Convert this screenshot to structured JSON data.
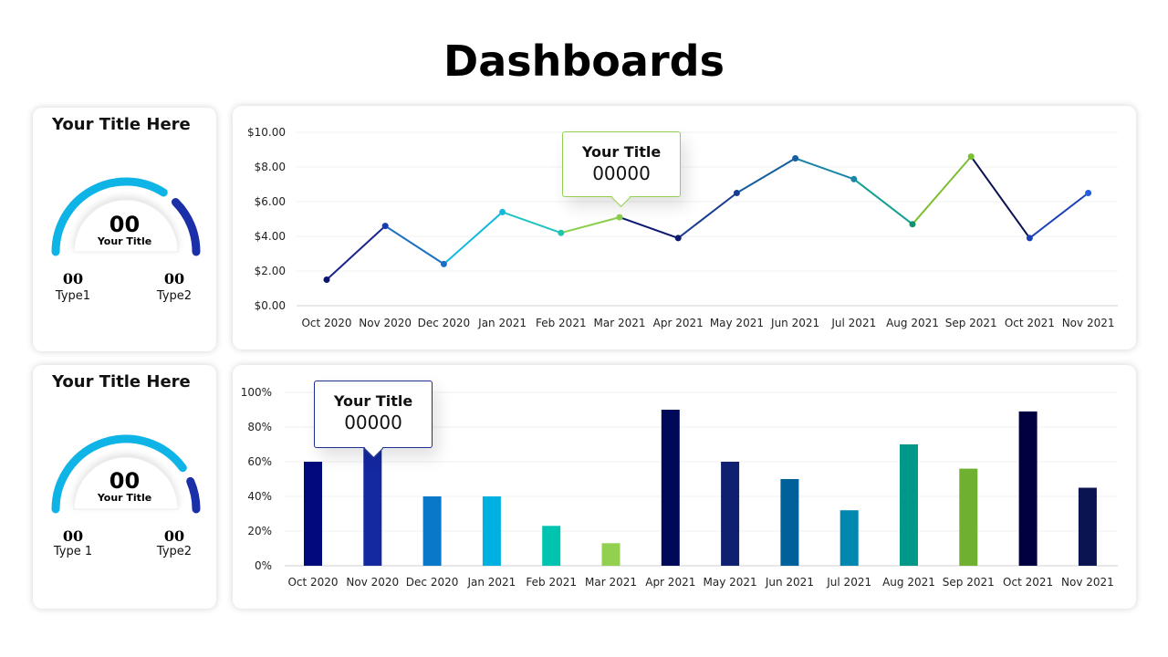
{
  "page_title": "Dashboards",
  "gauges": [
    {
      "title": "Your Title Here",
      "value": "00",
      "label": "Your Title",
      "fill_fraction": 0.68,
      "type1_value": "00",
      "type1_label": "Type1",
      "type2_value": "00",
      "type2_label": "Type2",
      "colors": {
        "primary": "#0fb4e6",
        "secondary": "#1a2fa8"
      }
    },
    {
      "title": "Your Title Here",
      "value": "00",
      "label": "Your Title",
      "fill_fraction": 0.8,
      "type1_value": "00",
      "type1_label": "Type 1",
      "type2_value": "00",
      "type2_label": "Type2",
      "colors": {
        "primary": "#0fb4e6",
        "secondary": "#1a2fa8"
      }
    }
  ],
  "tooltips": [
    {
      "title": "Your Title",
      "value": "00000",
      "border": "#92d050"
    },
    {
      "title": "Your Title",
      "value": "00000",
      "border": "#1a2f8f"
    }
  ],
  "chart_data": [
    {
      "type": "line",
      "categories": [
        "Oct 2020",
        "Nov 2020",
        "Dec 2020",
        "Jan 2021",
        "Feb 2021",
        "Mar 2021",
        "Apr 2021",
        "May 2021",
        "Jun 2021",
        "Jul 2021",
        "Aug 2021",
        "Sep 2021",
        "Oct 2021",
        "Nov 2021"
      ],
      "values": [
        1.5,
        4.6,
        2.4,
        5.4,
        4.2,
        5.1,
        3.9,
        6.5,
        8.5,
        7.3,
        4.7,
        8.6,
        3.9,
        6.5
      ],
      "ylim": [
        0,
        10
      ],
      "yticks": [
        "$0.00",
        "$2.00",
        "$4.00",
        "$6.00",
        "$8.00",
        "$10.00"
      ],
      "grid": true,
      "segment_colors": [
        "#1a2590",
        "#1a70c4",
        "#12b8e0",
        "#22c4c0",
        "#8ccf4e",
        "#0d1870",
        "#1a3c90",
        "#145ea0",
        "#1a86a8",
        "#12a090",
        "#7cbf30",
        "#0a1050",
        "#1a40b8"
      ],
      "point_colors": [
        "#0d1470",
        "#1a3cb0",
        "#1a70c4",
        "#12b8e0",
        "#22c4b0",
        "#8ccf4e",
        "#0d1870",
        "#1a3c90",
        "#145ea0",
        "#1a86a8",
        "#129070",
        "#7cbf30",
        "#1a40b8",
        "#2060e0"
      ]
    },
    {
      "type": "bar",
      "categories": [
        "Oct 2020",
        "Nov 2020",
        "Dec 2020",
        "Jan 2021",
        "Feb 2021",
        "Mar 2021",
        "Apr 2021",
        "May 2021",
        "Jun 2021",
        "Jul 2021",
        "Aug 2021",
        "Sep 2021",
        "Oct 2021",
        "Nov 2021"
      ],
      "values": [
        60,
        70,
        40,
        40,
        23,
        13,
        90,
        60,
        50,
        32,
        70,
        56,
        89,
        45
      ],
      "ylim": [
        0,
        100
      ],
      "yticks": [
        "0%",
        "20%",
        "40%",
        "60%",
        "80%",
        "100%"
      ],
      "grid": true,
      "colors": [
        "#000a7a",
        "#1428a0",
        "#0a78c8",
        "#00b0e0",
        "#00c4b0",
        "#92d050",
        "#000858",
        "#102070",
        "#00609a",
        "#0088b0",
        "#009888",
        "#70b030",
        "#000040",
        "#0a1450"
      ]
    }
  ]
}
